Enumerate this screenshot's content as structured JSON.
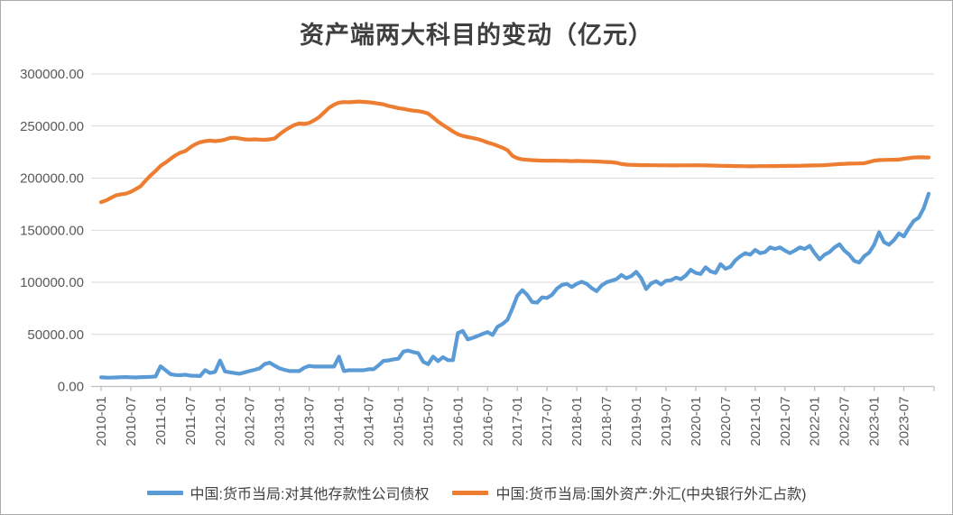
{
  "title": "资产端两大科目的变动（亿元）",
  "colors": {
    "series_blue": "#5B9BD5",
    "series_orange": "#ED7D31",
    "gridline": "#D9D9D9",
    "axis_line": "#BFBFBF",
    "tick_label": "#595959",
    "title_text": "#3F3F3F",
    "legend_text": "#404040",
    "background": "#FFFFFF",
    "frame_border": "#ABABAB"
  },
  "y_axis": {
    "tick_labels": [
      "300000.00",
      "250000.00",
      "200000.00",
      "150000.00",
      "100000.00",
      "50000.00",
      "0.00"
    ],
    "min": 0,
    "max": 300000,
    "step": 50000
  },
  "x_axis": {
    "tick_labels": [
      "2010-01",
      "2010-07",
      "2011-01",
      "2011-07",
      "2012-01",
      "2012-07",
      "2013-01",
      "2013-07",
      "2014-01",
      "2014-07",
      "2015-01",
      "2015-07",
      "2016-01",
      "2016-07",
      "2017-01",
      "2017-07",
      "2018-01",
      "2018-07",
      "2019-01",
      "2019-07",
      "2020-01",
      "2020-07",
      "2021-01",
      "2021-07",
      "2022-01",
      "2022-07",
      "2023-01",
      "2023-07"
    ],
    "tick_interval_months": 6
  },
  "chart_data": {
    "type": "line",
    "frequency": "monthly",
    "x_start": "2010-01",
    "x_end": "2023-12",
    "title": "资产端两大科目的变动（亿元）",
    "ylabel": "亿元",
    "ylim": [
      0,
      300000
    ],
    "grid": "horizontal",
    "legend_position": "bottom",
    "series": [
      {
        "name": "中国:货币当局:对其他存款性公司债权",
        "color": "#5B9BD5",
        "values": [
          8800,
          8600,
          8500,
          8700,
          8900,
          9000,
          8800,
          8700,
          8900,
          9100,
          9300,
          9600,
          19400,
          15700,
          11900,
          11000,
          10800,
          11300,
          10400,
          10200,
          10000,
          15700,
          13000,
          14000,
          24900,
          14500,
          13600,
          12800,
          12200,
          13600,
          14800,
          16000,
          17400,
          21500,
          22900,
          20000,
          17400,
          16000,
          14800,
          14800,
          14800,
          18000,
          19700,
          19100,
          19100,
          19100,
          19100,
          19100,
          28700,
          14800,
          15600,
          15600,
          15600,
          15600,
          16500,
          16500,
          20300,
          24600,
          25000,
          26100,
          26700,
          33500,
          34500,
          33000,
          32000,
          23700,
          21400,
          28700,
          24300,
          28100,
          25300,
          25300,
          51300,
          53300,
          45200,
          46700,
          48500,
          50500,
          52200,
          49400,
          57300,
          60000,
          64000,
          75000,
          87000,
          92500,
          88000,
          81000,
          80500,
          85500,
          85000,
          88000,
          94000,
          97500,
          98500,
          95500,
          98500,
          100500,
          98500,
          94500,
          91500,
          97000,
          100000,
          101500,
          103000,
          107000,
          104000,
          106000,
          110000,
          104000,
          93500,
          99000,
          101000,
          98000,
          101500,
          102000,
          104500,
          103000,
          106500,
          112000,
          109000,
          108000,
          114500,
          110500,
          109000,
          117500,
          113000,
          115000,
          121000,
          125000,
          128000,
          126500,
          131000,
          128000,
          129000,
          133500,
          132000,
          133500,
          130500,
          128000,
          130500,
          133500,
          132000,
          135000,
          128000,
          122000,
          126500,
          129000,
          133500,
          136500,
          130500,
          126500,
          120500,
          119000,
          125000,
          128500,
          136000,
          148000,
          138500,
          136000,
          140500,
          147000,
          144000,
          152000,
          159000,
          162000,
          171000,
          185000
        ]
      },
      {
        "name": "中国:货币当局:国外资产:外汇(中央银行外汇占款)",
        "color": "#ED7D31",
        "values": [
          177000,
          178600,
          181000,
          183500,
          184500,
          185100,
          186800,
          189400,
          192300,
          197700,
          202600,
          206800,
          211800,
          214900,
          218400,
          221900,
          224500,
          226000,
          229500,
          232500,
          234500,
          235500,
          236000,
          235500,
          236000,
          237000,
          238500,
          238800,
          238000,
          237200,
          237000,
          237200,
          237000,
          236800,
          237200,
          238000,
          242000,
          245500,
          248500,
          251000,
          252500,
          252000,
          253000,
          255500,
          258500,
          263000,
          267500,
          270500,
          272500,
          273000,
          272800,
          273200,
          273500,
          273200,
          272800,
          272300,
          271500,
          270800,
          269300,
          268300,
          267200,
          266500,
          265500,
          264800,
          264300,
          263500,
          262000,
          258300,
          254200,
          251000,
          248000,
          244800,
          242200,
          240500,
          239500,
          238500,
          237500,
          236000,
          234200,
          232800,
          231000,
          229200,
          226800,
          221400,
          219100,
          218000,
          217600,
          217200,
          217000,
          216800,
          216700,
          216800,
          216700,
          216600,
          216500,
          216300,
          216500,
          216400,
          216300,
          216200,
          216000,
          215800,
          215500,
          215200,
          214700,
          213600,
          213000,
          212700,
          212600,
          212500,
          212500,
          212400,
          212400,
          212300,
          212300,
          212200,
          212200,
          212300,
          212300,
          212300,
          212400,
          212300,
          212200,
          212100,
          212000,
          211900,
          211800,
          211700,
          211600,
          211500,
          211400,
          211300,
          211400,
          211500,
          211500,
          211600,
          211600,
          211700,
          211700,
          211800,
          211800,
          211900,
          212000,
          212100,
          212200,
          212300,
          212500,
          212800,
          213200,
          213500,
          213700,
          213900,
          214000,
          214100,
          214300,
          215500,
          216800,
          217300,
          217500,
          217600,
          217700,
          217800,
          218500,
          219200,
          219800,
          220000,
          219900,
          219800
        ]
      }
    ]
  },
  "legend": {
    "entries": [
      {
        "label": "中国:货币当局:对其他存款性公司债权",
        "color": "#5B9BD5"
      },
      {
        "label": "中国:货币当局:国外资产:外汇(中央银行外汇占款)",
        "color": "#ED7D31"
      }
    ]
  }
}
